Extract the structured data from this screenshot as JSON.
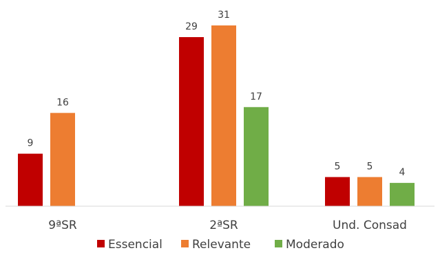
{
  "chart_data": {
    "type": "bar",
    "categories": [
      "9ªSR",
      "2ªSR",
      "Und. Consad"
    ],
    "series": [
      {
        "name": "Essencial",
        "values": [
          9,
          29,
          5
        ],
        "color": "#C00000"
      },
      {
        "name": "Relevante",
        "values": [
          16,
          31,
          5
        ],
        "color": "#ED7D31"
      },
      {
        "name": "Moderado",
        "values": [
          null,
          17,
          4
        ],
        "color": "#70AD47"
      }
    ],
    "ylim": [
      0,
      31
    ],
    "grid": false,
    "legend_position": "bottom",
    "data_labels": true,
    "title": "",
    "xlabel": "",
    "ylabel": ""
  }
}
